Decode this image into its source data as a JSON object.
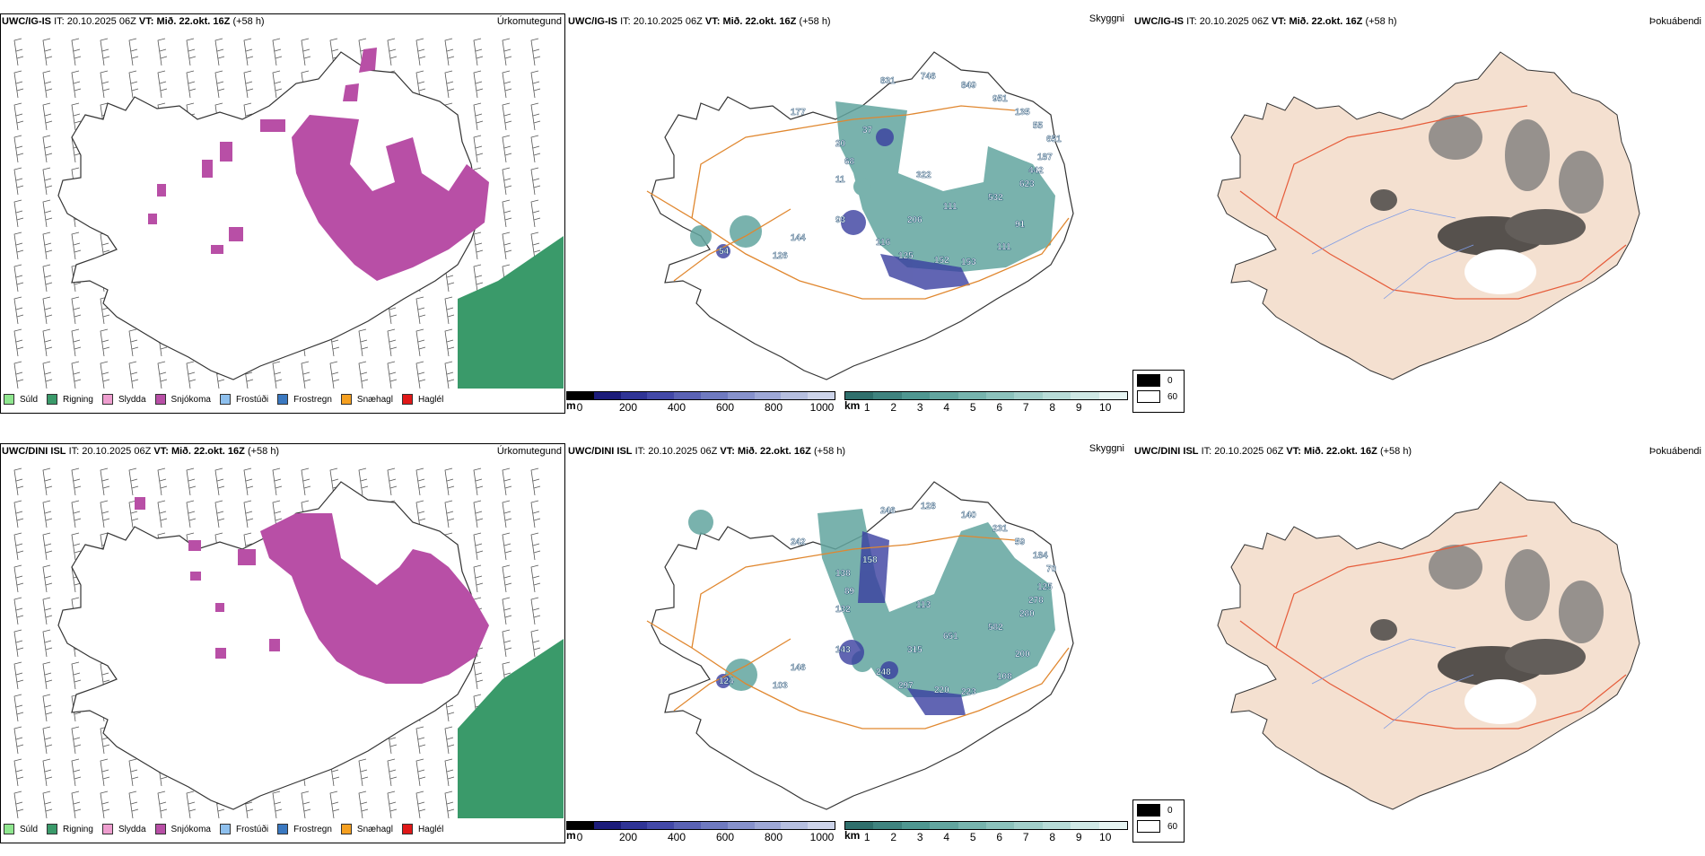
{
  "rows": [
    {
      "model": "UWC/IG-IS",
      "it_label": "IT:",
      "issue_time": "20.10.2025 06Z",
      "vt_label": "VT:",
      "valid_time": "Mið. 22.okt. 16Z",
      "lead": "(+58 h)",
      "cloud_labels": [
        "177",
        "831",
        "746",
        "849",
        "951",
        "135",
        "55",
        "651",
        "187",
        "442",
        "623",
        "532",
        "111",
        "206",
        "116",
        "125",
        "152",
        "153",
        "111",
        "91",
        "93",
        "144",
        "126",
        "54",
        "20",
        "37",
        "68",
        "11",
        "322"
      ]
    },
    {
      "model": "UWC/DINI ISL",
      "it_label": "IT:",
      "issue_time": "20.10.2025 06Z",
      "vt_label": "VT:",
      "valid_time": "Mið. 22.okt. 16Z",
      "lead": "(+58 h)",
      "cloud_labels": [
        "242",
        "246",
        "128",
        "140",
        "231",
        "59",
        "184",
        "70",
        "125",
        "278",
        "280",
        "582",
        "651",
        "315",
        "248",
        "297",
        "220",
        "223",
        "108",
        "200",
        "143",
        "146",
        "103",
        "124",
        "138",
        "158",
        "89",
        "132",
        "113"
      ]
    }
  ],
  "panel_titles": {
    "precip": "Úrkomutegund",
    "cloud": "Skyggni",
    "fog": "Þokuábendi"
  },
  "precip_legend": [
    {
      "label": "Súld",
      "color": "#8ee68e"
    },
    {
      "label": "Rigning",
      "color": "#3a9a6a"
    },
    {
      "label": "Slydda",
      "color": "#ee9ecf"
    },
    {
      "label": "Snjókoma",
      "color": "#b84fa6"
    },
    {
      "label": "Frostúði",
      "color": "#8ec0ee"
    },
    {
      "label": "Frostregn",
      "color": "#3a78c0"
    },
    {
      "label": "Snæhagl",
      "color": "#f5a020"
    },
    {
      "label": "Haglél",
      "color": "#e01818"
    }
  ],
  "height_scale": {
    "unit": "m",
    "ticks": [
      "0",
      "200",
      "400",
      "600",
      "800",
      "1000"
    ],
    "colors": [
      "#000000",
      "#1c1c7a",
      "#2f3496",
      "#4349a8",
      "#5a62b4",
      "#6f7ac0",
      "#8792cc",
      "#9ea8d6",
      "#b6bfe0",
      "#cdd4ea"
    ]
  },
  "visibility_scale": {
    "unit": "km",
    "ticks": [
      "1",
      "2",
      "3",
      "4",
      "5",
      "6",
      "7",
      "8",
      "9",
      "10"
    ],
    "colors": [
      "#2f6f6c",
      "#3f837f",
      "#4f9791",
      "#62a59f",
      "#77b4ae",
      "#8cc2bc",
      "#a2cfca",
      "#b8dcd8",
      "#cfe8e5",
      "#e6f4f2"
    ]
  },
  "fog_legend": [
    {
      "value": "0",
      "color": "#000000"
    },
    {
      "value": "60",
      "color": "#ffffff"
    }
  ]
}
